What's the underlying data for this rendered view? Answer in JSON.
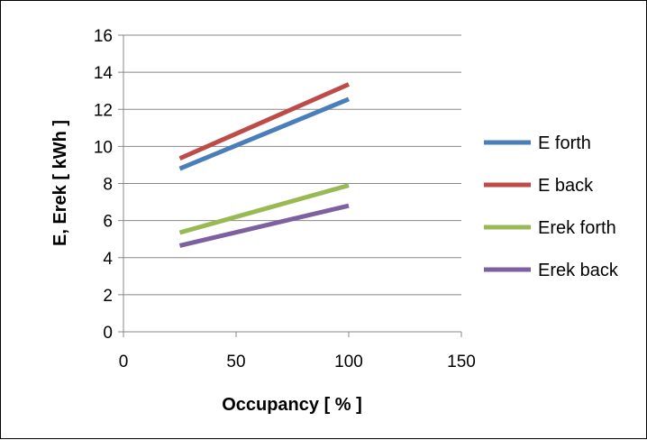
{
  "chart_data": {
    "type": "line",
    "title": "",
    "xlabel": "Occupancy [ % ]",
    "ylabel": "E, Erek [ kWh ]",
    "xlim": [
      0,
      150
    ],
    "ylim": [
      0,
      16
    ],
    "xticks": [
      0,
      50,
      100,
      150
    ],
    "yticks": [
      0,
      2,
      4,
      6,
      8,
      10,
      12,
      14,
      16
    ],
    "grid": "horizontal",
    "legend": "right",
    "series": [
      {
        "name": "E forth",
        "color": "#4A7EBB",
        "x": [
          25,
          100
        ],
        "y": [
          8.8,
          12.55
        ]
      },
      {
        "name": "E back",
        "color": "#BE4B48",
        "x": [
          25,
          100
        ],
        "y": [
          9.35,
          13.35
        ]
      },
      {
        "name": "Erek forth",
        "color": "#98B954",
        "x": [
          25,
          100
        ],
        "y": [
          5.35,
          7.9
        ]
      },
      {
        "name": "Erek back",
        "color": "#7D60A0",
        "x": [
          25,
          100
        ],
        "y": [
          4.65,
          6.8
        ]
      }
    ]
  }
}
